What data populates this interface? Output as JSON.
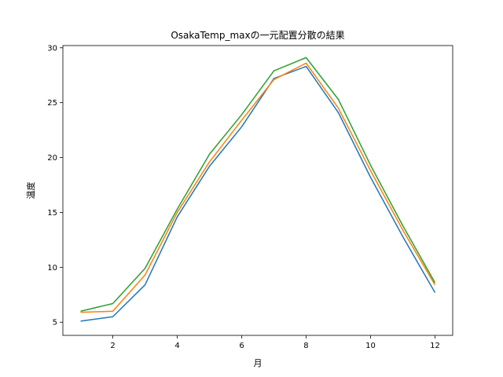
{
  "chart_data": {
    "type": "line",
    "title": "OsakaTemp_maxの一元配置分散の結果",
    "xlabel": "月",
    "ylabel": "温度",
    "x": [
      1,
      2,
      3,
      4,
      5,
      6,
      7,
      8,
      9,
      10,
      11,
      12
    ],
    "xlim": [
      0.45,
      12.55
    ],
    "ylim": [
      3.8,
      30.2
    ],
    "xticks": [
      2,
      4,
      6,
      8,
      10,
      12
    ],
    "yticks": [
      5,
      10,
      15,
      20,
      25,
      30
    ],
    "grid": false,
    "series": [
      {
        "color": "#1f77b4",
        "values": [
          5.1,
          5.5,
          8.4,
          14.6,
          19.2,
          22.8,
          27.2,
          28.3,
          24.1,
          18.2,
          12.8,
          7.7
        ]
      },
      {
        "color": "#ff7f0e",
        "values": [
          5.9,
          6.0,
          9.3,
          15.0,
          19.6,
          23.4,
          27.1,
          28.6,
          24.5,
          18.8,
          13.4,
          8.4
        ]
      },
      {
        "color": "#2ca02c",
        "values": [
          6.0,
          6.7,
          9.9,
          15.3,
          20.3,
          23.9,
          27.9,
          29.1,
          25.3,
          19.3,
          13.8,
          8.6
        ]
      }
    ]
  }
}
